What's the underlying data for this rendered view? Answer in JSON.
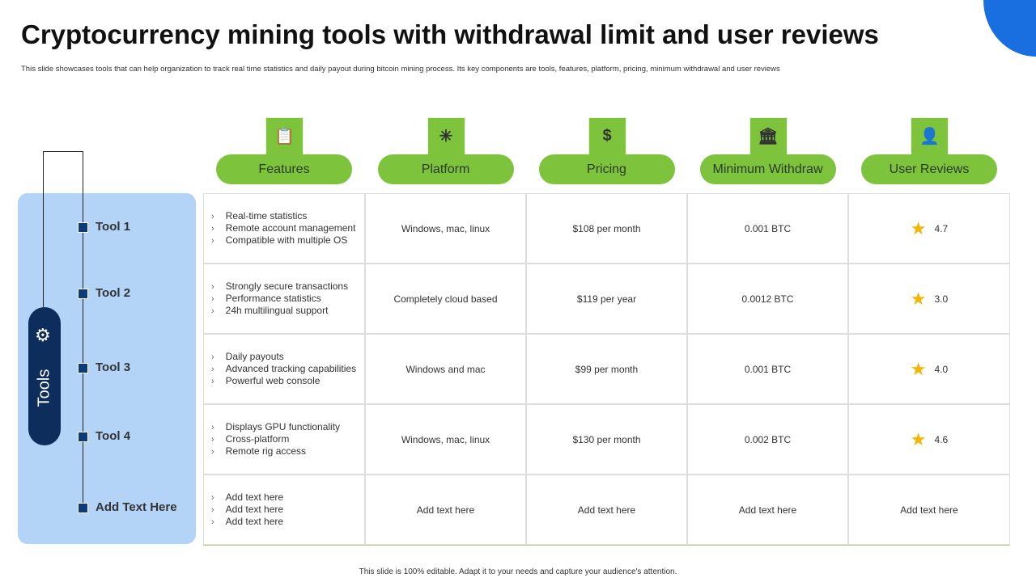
{
  "title": "Cryptocurrency mining tools with withdrawal limit and user reviews",
  "subtitle": "This slide showcases tools that can help organization to track real time statistics and daily payout during bitcoin mining  process. Its key components are tools,  features, platform, pricing, minimum  withdrawal and user reviews",
  "colors": {
    "green": "#7dc43c",
    "navy": "#0d2d5c",
    "panel": "#b3d4f7",
    "accent": "#1a6fe0",
    "star": "#f4b400"
  },
  "sidebar": {
    "label": "Tools",
    "icon": "gear-icon",
    "tools": [
      "Tool 1",
      "Tool 2",
      "Tool 3",
      "Tool 4",
      "Add Text Here"
    ]
  },
  "columns": [
    {
      "label": "Features",
      "icon": "clipboard-icon"
    },
    {
      "label": "Platform",
      "icon": "network-icon"
    },
    {
      "label": "Pricing",
      "icon": "price-tag-dollar-icon"
    },
    {
      "label": "Minimum Withdraw",
      "icon": "coins-bank-icon"
    },
    {
      "label": "User Reviews",
      "icon": "user-review-icon"
    }
  ],
  "rows": [
    {
      "features": [
        "Real-time statistics",
        "Remote account management",
        "Compatible with multiple OS"
      ],
      "platform": "Windows, mac, linux",
      "pricing": "$108 per month",
      "withdraw": "0.001 BTC",
      "rating": "4.7"
    },
    {
      "features": [
        "Strongly secure transactions",
        "Performance statistics",
        "24h multilingual support"
      ],
      "platform": "Completely cloud based",
      "pricing": "$119 per year",
      "withdraw": "0.0012 BTC",
      "rating": "3.0"
    },
    {
      "features": [
        "Daily payouts",
        "Advanced tracking capabilities",
        "Powerful web console"
      ],
      "platform": "Windows and mac",
      "pricing": "$99 per month",
      "withdraw": "0.001 BTC",
      "rating": "4.0"
    },
    {
      "features": [
        "Displays GPU functionality",
        "Cross-platform",
        "Remote rig access"
      ],
      "platform": "Windows, mac, linux",
      "pricing": "$130 per month",
      "withdraw": "0.002 BTC",
      "rating": "4.6"
    },
    {
      "features": [
        "Add text here",
        "Add text here",
        "Add text here"
      ],
      "platform": "Add text here",
      "pricing": "Add text here",
      "withdraw": "Add text here",
      "rating": "Add text here"
    }
  ],
  "footer": "This slide is 100% editable.  Adapt it to your needs and capture your audience's attention."
}
